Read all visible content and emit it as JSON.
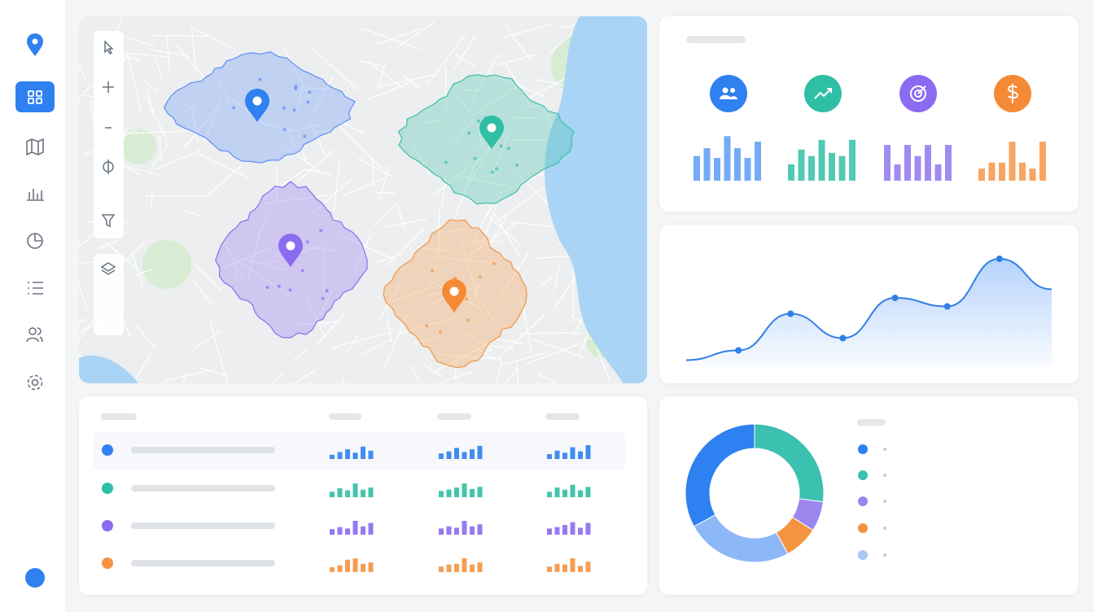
{
  "kpi_charts": {
    "type": "bar",
    "ylim": [
      0,
      100
    ],
    "series": [
      {
        "color": "#5b9cf6",
        "values": [
          53,
          70,
          49,
          96,
          70,
          49,
          84
        ]
      },
      {
        "color": "#34bfa8",
        "values": [
          35,
          67,
          53,
          88,
          60,
          53,
          88
        ]
      },
      {
        "color": "#9177f0",
        "values": [
          77,
          35,
          77,
          53,
          77,
          35,
          77
        ]
      },
      {
        "color": "#f69547",
        "values": [
          26,
          39,
          39,
          84,
          39,
          26,
          84
        ]
      }
    ]
  },
  "trend": {
    "type": "line",
    "color": "#2f7fe8",
    "ylim": [
      0,
      100
    ],
    "values": [
      5,
      13,
      43,
      23,
      56,
      49,
      88,
      63
    ]
  },
  "share": {
    "type": "pie",
    "colors": [
      "#3cc0b0",
      "#9b86ee",
      "#f59440",
      "#8db8f8",
      "#2f80f0"
    ],
    "values": [
      27,
      7,
      8,
      25,
      33
    ]
  },
  "table": {
    "type": "bar",
    "ylim": [
      0,
      100
    ],
    "rows": [
      {
        "color": "#2f80f0",
        "spark": [
          [
            30,
            50,
            70,
            45,
            90,
            60
          ],
          [
            40,
            55,
            80,
            50,
            70,
            95
          ],
          [
            35,
            60,
            45,
            85,
            55,
            100
          ]
        ]
      },
      {
        "color": "#2fbfa5",
        "spark": [
          [
            40,
            65,
            50,
            100,
            55,
            70
          ],
          [
            45,
            55,
            70,
            100,
            60,
            75
          ],
          [
            40,
            70,
            55,
            90,
            50,
            75
          ]
        ]
      },
      {
        "color": "#8b6cf0",
        "spark": [
          [
            40,
            55,
            45,
            100,
            60,
            85
          ],
          [
            45,
            60,
            50,
            100,
            60,
            75
          ],
          [
            45,
            55,
            70,
            90,
            50,
            85
          ]
        ]
      },
      {
        "color": "#f59440",
        "spark": [
          [
            35,
            50,
            90,
            100,
            60,
            70
          ],
          [
            40,
            55,
            60,
            100,
            55,
            70
          ],
          [
            40,
            60,
            55,
            100,
            45,
            75
          ]
        ]
      }
    ]
  }
}
